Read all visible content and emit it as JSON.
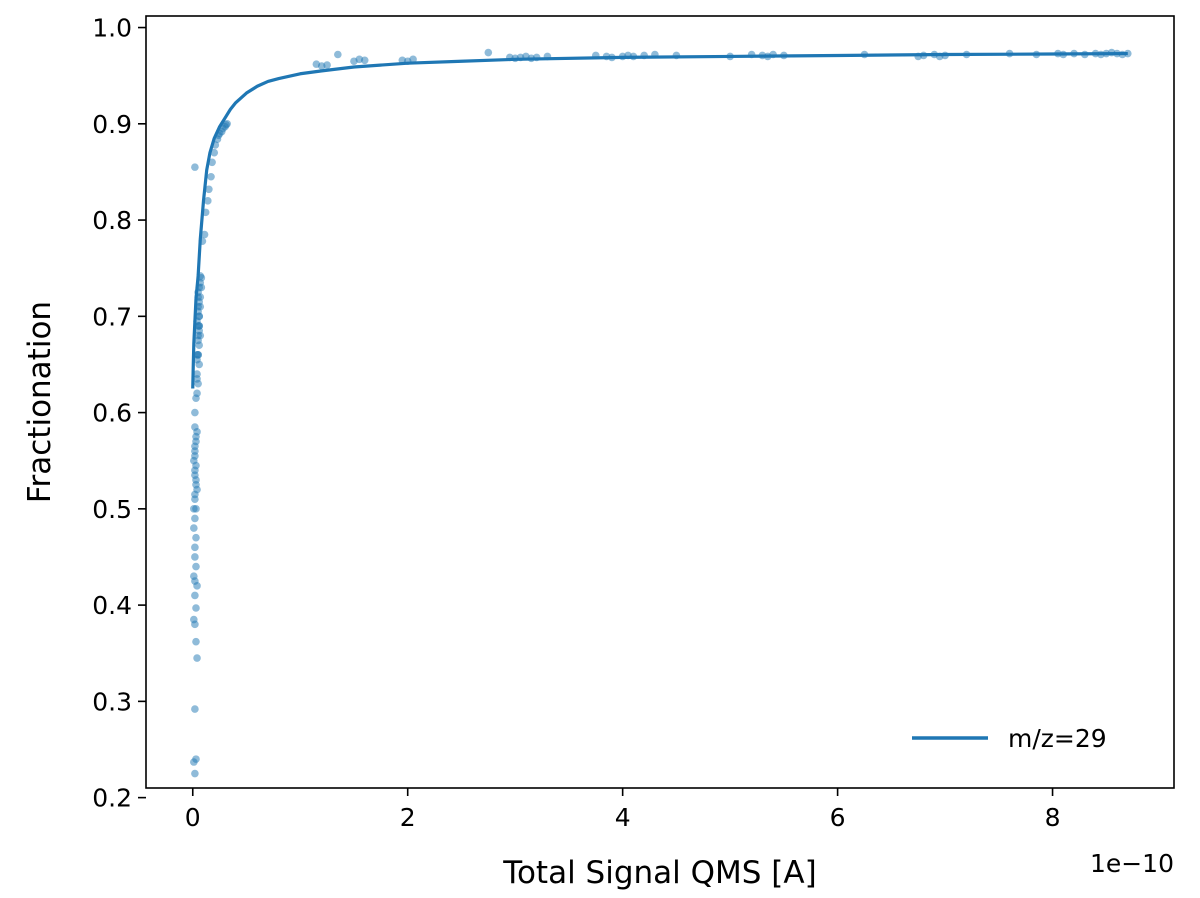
{
  "chart_data": {
    "type": "scatter",
    "title": "",
    "xlabel": "Total Signal QMS [A]",
    "ylabel": "Fractionation",
    "x_offset_label": "1e−10",
    "x_scale": 1e-10,
    "xlim": [
      -0.435,
      9.13
    ],
    "ylim": [
      0.21,
      1.012
    ],
    "xticks": [
      0,
      2,
      4,
      6,
      8
    ],
    "xtick_labels": [
      "0",
      "2",
      "4",
      "6",
      "8"
    ],
    "yticks": [
      0.2,
      0.3,
      0.4,
      0.5,
      0.6,
      0.7,
      0.8,
      0.9,
      1.0
    ],
    "ytick_labels": [
      "0.2",
      "0.3",
      "0.4",
      "0.5",
      "0.6",
      "0.7",
      "0.8",
      "0.9",
      "1.0"
    ],
    "grid": false,
    "legend": {
      "placement": "lower right",
      "entries": [
        "m/z=29"
      ]
    },
    "color": "#1f77b4",
    "series": [
      {
        "name": "m/z=29",
        "kind": "line",
        "x": [
          0.0,
          0.005,
          0.01,
          0.02,
          0.03,
          0.05,
          0.07,
          0.1,
          0.13,
          0.16,
          0.2,
          0.25,
          0.3,
          0.35,
          0.4,
          0.5,
          0.6,
          0.7,
          0.8,
          1.0,
          1.2,
          1.5,
          2.0,
          2.5,
          3.0,
          4.0,
          5.0,
          6.0,
          7.0,
          8.0,
          8.7
        ],
        "y": [
          0.625,
          0.65,
          0.672,
          0.695,
          0.718,
          0.742,
          0.78,
          0.82,
          0.852,
          0.87,
          0.885,
          0.897,
          0.906,
          0.915,
          0.922,
          0.932,
          0.939,
          0.944,
          0.947,
          0.952,
          0.955,
          0.959,
          0.963,
          0.965,
          0.967,
          0.969,
          0.97,
          0.971,
          0.972,
          0.9725,
          0.973
        ]
      },
      {
        "name": "",
        "kind": "scatter",
        "x": [
          0.02,
          0.03,
          0.01,
          0.02,
          0.04,
          0.03,
          0.02,
          0.01,
          0.03,
          0.02,
          0.04,
          0.02,
          0.01,
          0.03,
          0.02,
          0.02,
          0.03,
          0.01,
          0.02,
          0.03,
          0.02,
          0.04,
          0.03,
          0.02,
          0.01,
          0.02,
          0.03,
          0.04,
          0.02,
          0.03,
          0.05,
          0.04,
          0.06,
          0.05,
          0.04,
          0.06,
          0.07,
          0.05,
          0.06,
          0.07,
          0.04,
          0.05,
          0.06,
          0.08,
          0.07,
          0.05,
          0.06,
          0.04,
          0.05,
          0.06,
          0.05,
          0.07,
          0.06,
          0.04,
          0.05,
          0.09,
          0.11,
          0.12,
          0.14,
          0.15,
          0.17,
          0.18,
          0.2,
          0.21,
          0.23,
          0.24,
          0.25,
          0.27,
          0.28,
          0.3,
          0.31,
          0.32,
          0.02,
          0.01,
          0.02,
          0.03,
          0.02,
          0.03,
          0.02,
          0.02,
          0.03,
          0.02,
          1.15,
          1.2,
          1.25,
          1.35,
          1.5,
          1.55,
          1.6,
          1.95,
          2.0,
          2.05,
          2.75,
          2.95,
          3.0,
          3.05,
          3.1,
          3.15,
          3.2,
          3.3,
          3.75,
          3.85,
          3.9,
          4.0,
          4.05,
          4.1,
          4.2,
          4.3,
          4.5,
          5.0,
          5.2,
          5.3,
          5.35,
          5.4,
          5.5,
          6.25,
          6.75,
          6.8,
          6.9,
          6.95,
          7.0,
          7.2,
          7.6,
          7.85,
          8.05,
          8.1,
          8.2,
          8.3,
          8.4,
          8.45,
          8.5,
          8.55,
          8.6,
          8.65,
          8.7,
          0.06,
          0.05,
          0.07,
          0.04,
          0.06,
          0.08,
          0.05
        ],
        "y": [
          0.225,
          0.24,
          0.237,
          0.292,
          0.345,
          0.362,
          0.38,
          0.385,
          0.397,
          0.41,
          0.42,
          0.425,
          0.43,
          0.44,
          0.45,
          0.46,
          0.47,
          0.48,
          0.49,
          0.5,
          0.51,
          0.52,
          0.53,
          0.54,
          0.55,
          0.56,
          0.57,
          0.58,
          0.6,
          0.615,
          0.63,
          0.62,
          0.65,
          0.66,
          0.64,
          0.67,
          0.68,
          0.69,
          0.7,
          0.71,
          0.695,
          0.72,
          0.73,
          0.74,
          0.735,
          0.705,
          0.685,
          0.655,
          0.675,
          0.715,
          0.725,
          0.742,
          0.69,
          0.635,
          0.66,
          0.778,
          0.785,
          0.808,
          0.82,
          0.832,
          0.845,
          0.86,
          0.87,
          0.878,
          0.884,
          0.888,
          0.89,
          0.892,
          0.895,
          0.897,
          0.899,
          0.9,
          0.855,
          0.5,
          0.515,
          0.525,
          0.535,
          0.545,
          0.555,
          0.565,
          0.575,
          0.585,
          0.962,
          0.96,
          0.961,
          0.972,
          0.965,
          0.967,
          0.966,
          0.966,
          0.965,
          0.967,
          0.974,
          0.969,
          0.968,
          0.969,
          0.97,
          0.968,
          0.969,
          0.97,
          0.971,
          0.97,
          0.969,
          0.97,
          0.971,
          0.97,
          0.971,
          0.972,
          0.971,
          0.97,
          0.972,
          0.971,
          0.97,
          0.972,
          0.971,
          0.972,
          0.97,
          0.971,
          0.972,
          0.97,
          0.971,
          0.972,
          0.973,
          0.972,
          0.973,
          0.972,
          0.973,
          0.972,
          0.973,
          0.972,
          0.973,
          0.974,
          0.973,
          0.972,
          0.973,
          0.7,
          0.68,
          0.72,
          0.66,
          0.69,
          0.73,
          0.71
        ]
      }
    ]
  }
}
